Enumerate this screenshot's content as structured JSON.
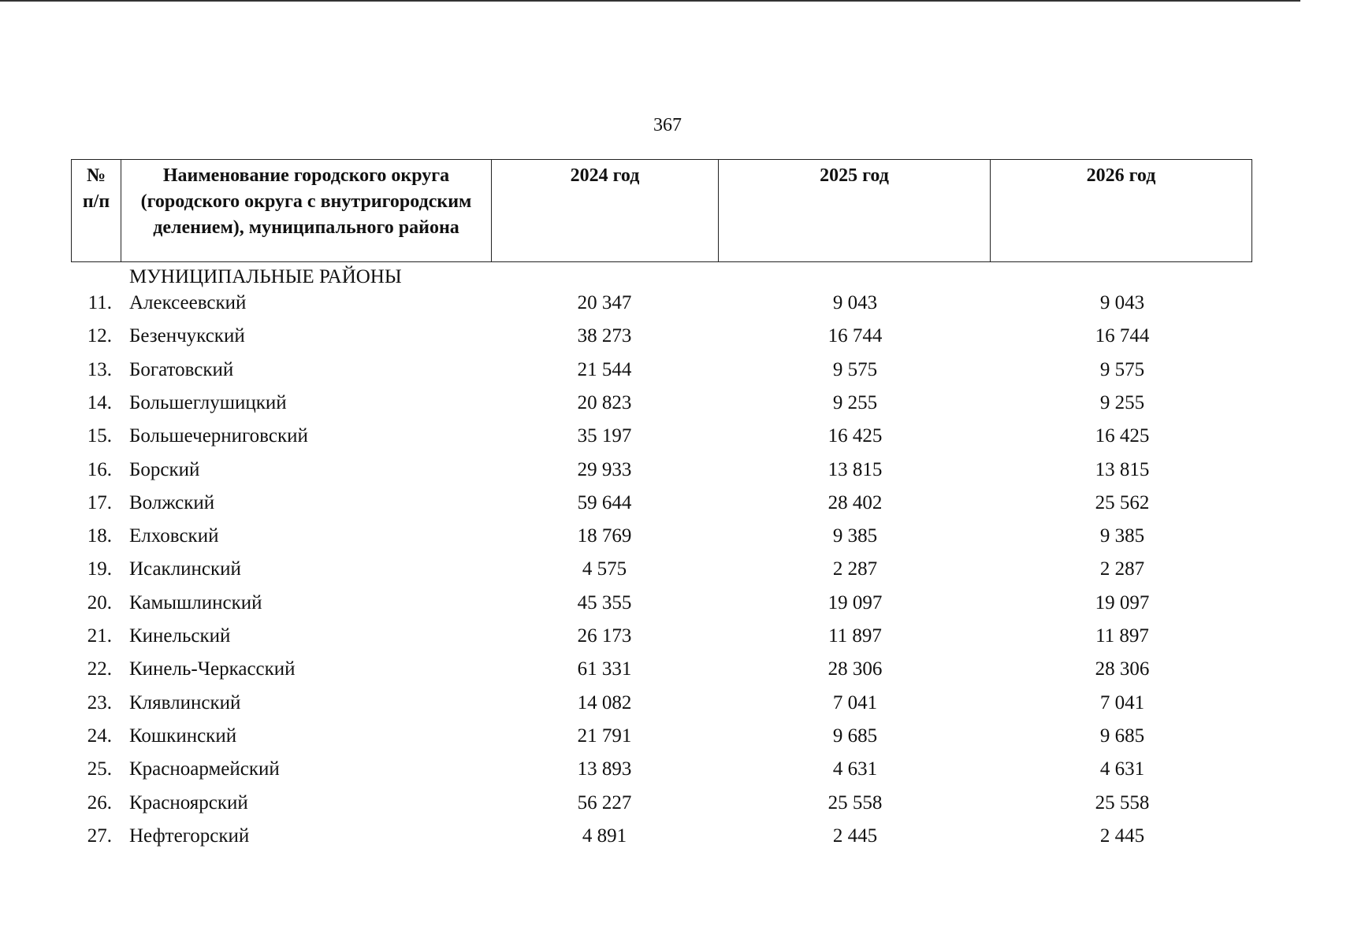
{
  "page_number": "367",
  "table": {
    "header": [
      "№ п/п",
      "Наименование городского округа (городского округа с внутригородским делением), муниципального района",
      "2024 год",
      "2025 год",
      "2026 год"
    ],
    "section": "МУНИЦИПАЛЬНЫЕ РАЙОНЫ",
    "rows": [
      [
        "11.",
        "Алексеевский",
        "20 347",
        "9 043",
        "9 043"
      ],
      [
        "12.",
        "Безенчукский",
        "38 273",
        "16 744",
        "16 744"
      ],
      [
        "13.",
        "Богатовский",
        "21 544",
        "9 575",
        "9 575"
      ],
      [
        "14.",
        "Большеглушицкий",
        "20 823",
        "9 255",
        "9 255"
      ],
      [
        "15.",
        "Большечерниговский",
        "35 197",
        "16 425",
        "16 425"
      ],
      [
        "16.",
        "Борский",
        "29 933",
        "13 815",
        "13 815"
      ],
      [
        "17.",
        "Волжский",
        "59 644",
        "28 402",
        "25 562"
      ],
      [
        "18.",
        "Елховский",
        "18 769",
        "9 385",
        "9 385"
      ],
      [
        "19.",
        "Исаклинский",
        "4 575",
        "2 287",
        "2 287"
      ],
      [
        "20.",
        "Камышлинский",
        "45 355",
        "19 097",
        "19 097"
      ],
      [
        "21.",
        "Кинельский",
        "26 173",
        "11 897",
        "11 897"
      ],
      [
        "22.",
        "Кинель-Черкасский",
        "61 331",
        "28 306",
        "28 306"
      ],
      [
        "23.",
        "Клявлинский",
        "14 082",
        "7 041",
        "7 041"
      ],
      [
        "24.",
        "Кошкинский",
        "21 791",
        "9 685",
        "9 685"
      ],
      [
        "25.",
        "Красноармейский",
        "13 893",
        "4 631",
        "4 631"
      ],
      [
        "26.",
        "Красноярский",
        "56 227",
        "25 558",
        "25 558"
      ],
      [
        "27.",
        "Нефтегорский",
        "4 891",
        "2 445",
        "2 445"
      ]
    ]
  }
}
